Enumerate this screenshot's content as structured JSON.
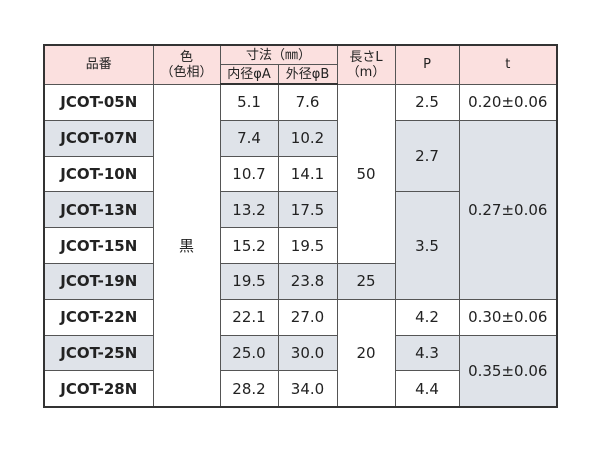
{
  "header": {
    "part_no": "品番",
    "color": "色",
    "color_sub": "（色相）",
    "dimensions": "寸法（㎜）",
    "inner": "内径φA",
    "outer": "外径φB",
    "length": "長さL",
    "length_unit": "（m）",
    "p": "P",
    "t": "t"
  },
  "table": {
    "part_numbers": [
      "JCOT-05N",
      "JCOT-07N",
      "JCOT-10N",
      "JCOT-13N",
      "JCOT-15N",
      "JCOT-19N",
      "JCOT-22N",
      "JCOT-25N",
      "JCOT-28N"
    ],
    "color": "黒",
    "inner": [
      "5.1",
      "7.4",
      "10.7",
      "13.2",
      "15.2",
      "19.5",
      "22.1",
      "25.0",
      "28.2"
    ],
    "outer": [
      "7.6",
      "10.2",
      "14.1",
      "17.5",
      "19.5",
      "23.8",
      "27.0",
      "30.0",
      "34.0"
    ],
    "length": [
      "50",
      "25",
      "20"
    ],
    "p": [
      "2.5",
      "2.7",
      "3.5",
      "4.2",
      "4.3",
      "4.4"
    ],
    "t": [
      "0.20±0.06",
      "0.27±0.06",
      "0.30±0.06",
      "0.35±0.06"
    ]
  }
}
